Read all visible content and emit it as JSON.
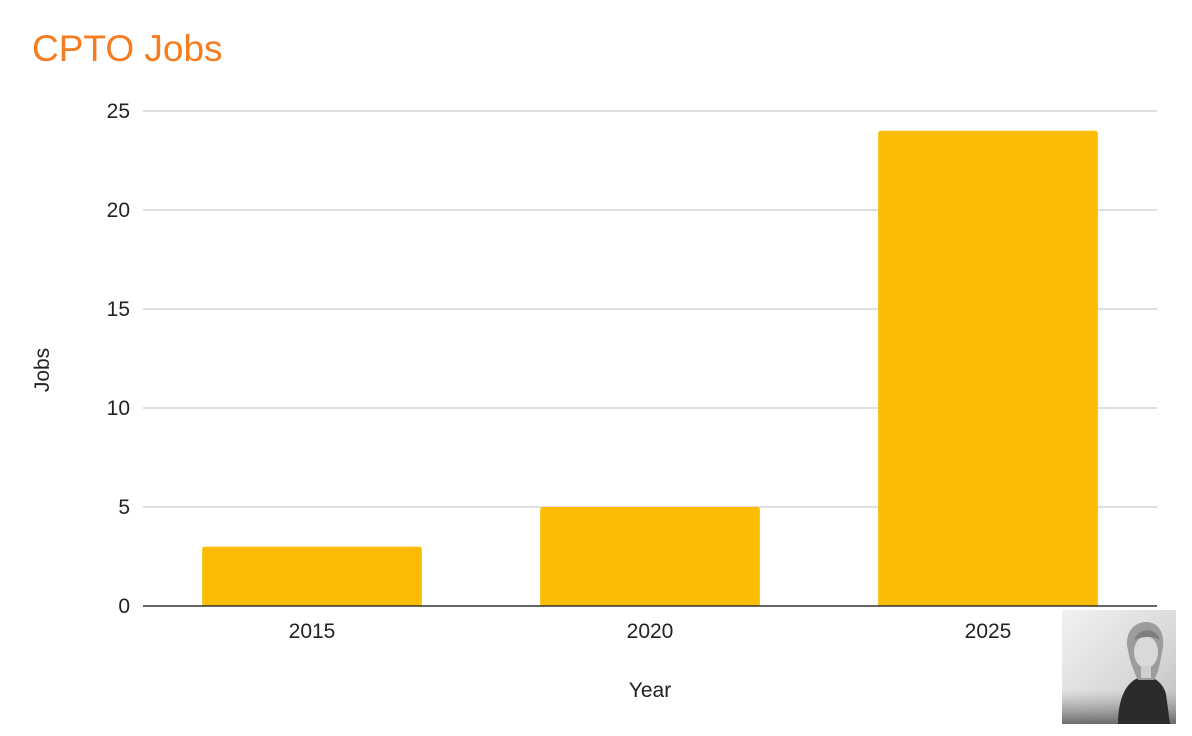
{
  "chart_data": {
    "type": "bar",
    "title": "CPTO Jobs",
    "categories": [
      "2015",
      "2020",
      "2025"
    ],
    "values": [
      3,
      5,
      24
    ],
    "xlabel": "Year",
    "ylabel": "Jobs",
    "ylim": [
      0,
      25
    ],
    "yticks": [
      "0",
      "5",
      "10",
      "15",
      "20",
      "25"
    ],
    "grid": true,
    "legend": "none",
    "colors": {
      "bar": "#fbbc04",
      "title": "#f57c1f",
      "grid": "#cccccc",
      "axis": "#333333"
    }
  },
  "photo": {
    "icon": "portrait-photo-icon"
  }
}
